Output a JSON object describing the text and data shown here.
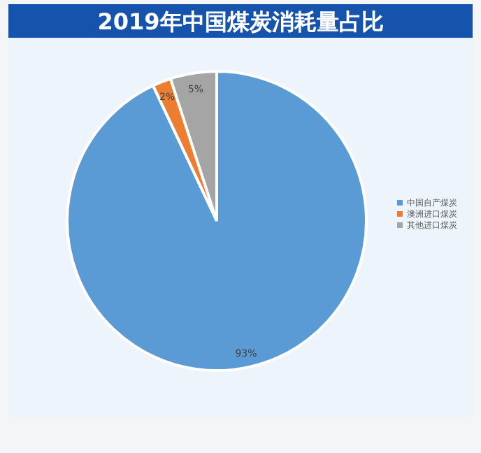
{
  "chart_data": {
    "type": "pie",
    "title": "2019年中国煤炭消耗量占比",
    "categories": [
      "中国自产煤炭",
      "澳洲进口煤炭",
      "其他进口煤炭"
    ],
    "values": [
      93,
      2,
      5
    ],
    "colors": [
      "#5b9bd5",
      "#ed7d31",
      "#a5a5a5"
    ],
    "value_labels": [
      "93%",
      "2%",
      "5%"
    ],
    "legend": "right"
  }
}
